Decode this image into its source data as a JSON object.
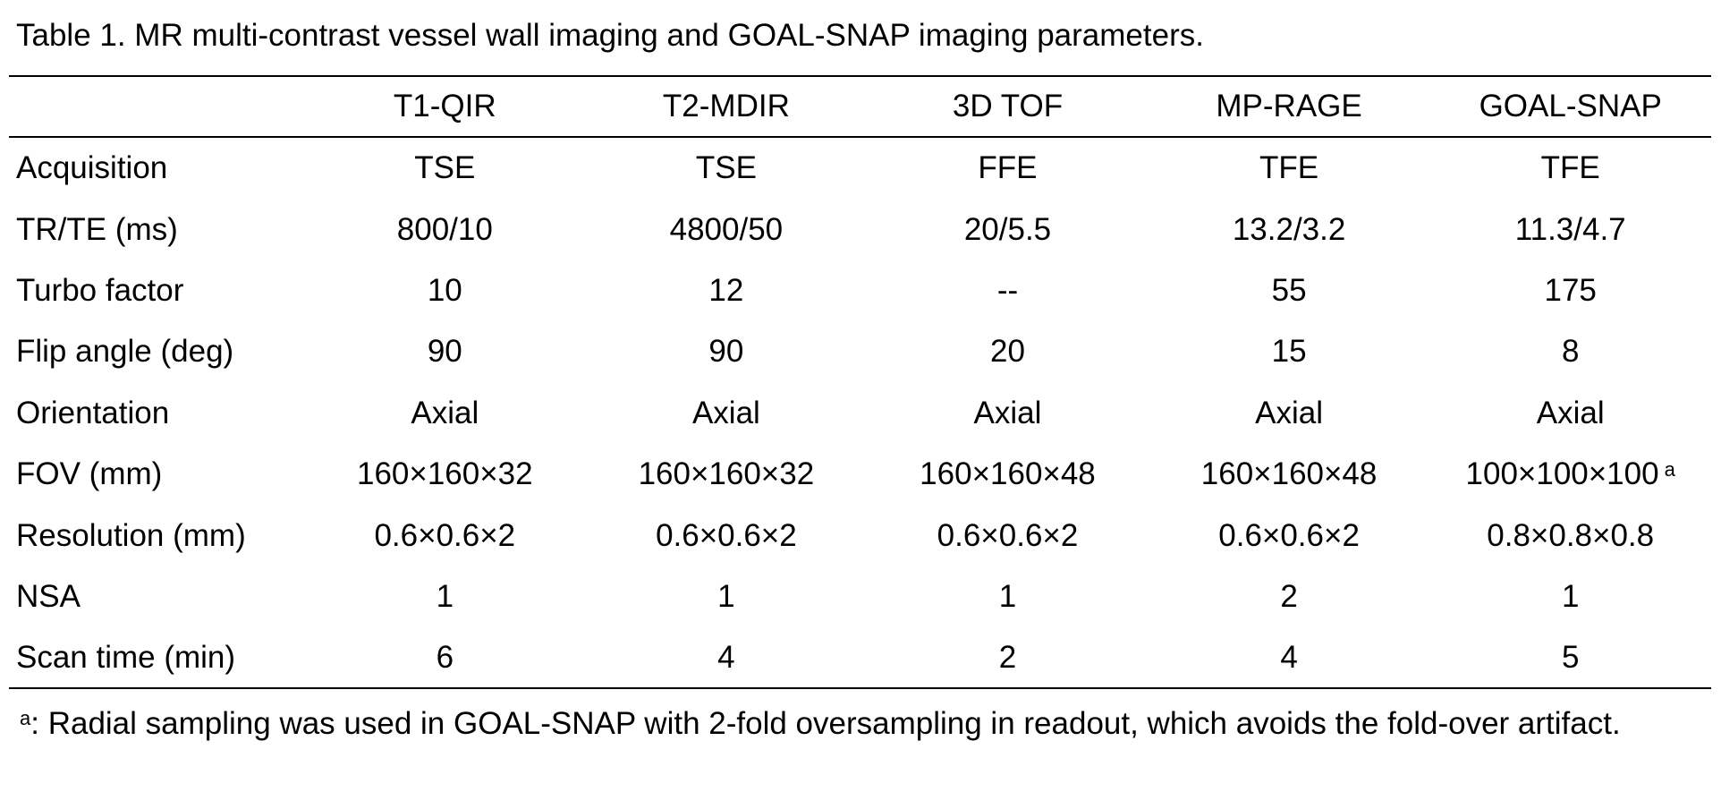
{
  "caption": "Table 1. MR multi-contrast vessel wall imaging and GOAL-SNAP imaging parameters.",
  "table": {
    "header": [
      "",
      "T1-QIR",
      "T2-MDIR",
      "3D TOF",
      "MP-RAGE",
      "GOAL-SNAP"
    ],
    "rows": [
      {
        "label": "Acquisition",
        "cells": [
          "TSE",
          "TSE",
          "FFE",
          "TFE",
          "TFE"
        ]
      },
      {
        "label": "TR/TE (ms)",
        "cells": [
          "800/10",
          "4800/50",
          "20/5.5",
          "13.2/3.2",
          "11.3/4.7"
        ]
      },
      {
        "label": "Turbo factor",
        "cells": [
          "10",
          "12",
          "--",
          "55",
          "175"
        ]
      },
      {
        "label": "Flip angle (deg)",
        "cells": [
          "90",
          "90",
          "20",
          "15",
          "8"
        ]
      },
      {
        "label": "Orientation",
        "cells": [
          "Axial",
          "Axial",
          "Axial",
          "Axial",
          "Axial"
        ]
      },
      {
        "label": "FOV (mm)",
        "cells": [
          "160×160×32",
          "160×160×32",
          "160×160×48",
          "160×160×48",
          "100×100×100"
        ],
        "note_mark": "a"
      },
      {
        "label": "Resolution (mm)",
        "cells": [
          "0.6×0.6×2",
          "0.6×0.6×2",
          "0.6×0.6×2",
          "0.6×0.6×2",
          "0.8×0.8×0.8"
        ]
      },
      {
        "label": "NSA",
        "cells": [
          "1",
          "1",
          "1",
          "2",
          "1"
        ]
      },
      {
        "label": "Scan time (min)",
        "cells": [
          "6",
          "4",
          "2",
          "4",
          "5"
        ]
      }
    ]
  },
  "footnote": {
    "mark": "a",
    "text": ": Radial sampling was used in GOAL-SNAP with 2-fold oversampling in readout, which avoids the fold-over artifact."
  }
}
